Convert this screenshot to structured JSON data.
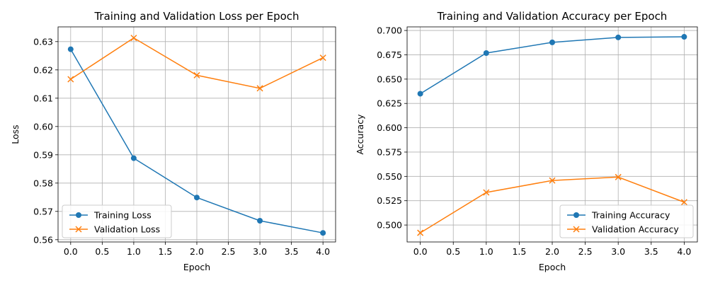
{
  "chart_data": [
    {
      "type": "line",
      "title": "Training and Validation Loss per Epoch",
      "xlabel": "Epoch",
      "ylabel": "Loss",
      "grid": true,
      "legend_position": "lower-left",
      "xlim": [
        -0.2,
        4.2
      ],
      "ylim": [
        0.5592,
        0.6352
      ],
      "xticks": [
        0.0,
        0.5,
        1.0,
        1.5,
        2.0,
        2.5,
        3.0,
        3.5,
        4.0
      ],
      "xtick_labels": [
        "0.0",
        "0.5",
        "1.0",
        "1.5",
        "2.0",
        "2.5",
        "3.0",
        "3.5",
        "4.0"
      ],
      "yticks": [
        0.56,
        0.57,
        0.58,
        0.59,
        0.6,
        0.61,
        0.62,
        0.63
      ],
      "ytick_labels": [
        "0.56",
        "0.57",
        "0.58",
        "0.59",
        "0.60",
        "0.61",
        "0.62",
        "0.63"
      ],
      "x": [
        0,
        1,
        2,
        3,
        4
      ],
      "series": [
        {
          "name": "Training Loss",
          "values": [
            0.6273,
            0.5888,
            0.5749,
            0.5667,
            0.5624
          ],
          "color": "#1f77b4",
          "marker": "circle"
        },
        {
          "name": "Validation Loss",
          "values": [
            0.6167,
            0.6313,
            0.6181,
            0.6135,
            0.6243
          ],
          "color": "#ff7f0e",
          "marker": "x"
        }
      ]
    },
    {
      "type": "line",
      "title": "Training and Validation Accuracy per Epoch",
      "xlabel": "Epoch",
      "ylabel": "Accuracy",
      "grid": true,
      "legend_position": "lower-right",
      "xlim": [
        -0.2,
        4.2
      ],
      "ylim": [
        0.4826,
        0.7037
      ],
      "xticks": [
        0.0,
        0.5,
        1.0,
        1.5,
        2.0,
        2.5,
        3.0,
        3.5,
        4.0
      ],
      "xtick_labels": [
        "0.0",
        "0.5",
        "1.0",
        "1.5",
        "2.0",
        "2.5",
        "3.0",
        "3.5",
        "4.0"
      ],
      "yticks": [
        0.5,
        0.525,
        0.55,
        0.575,
        0.6,
        0.625,
        0.65,
        0.675,
        0.7
      ],
      "ytick_labels": [
        "0.500",
        "0.525",
        "0.550",
        "0.575",
        "0.600",
        "0.625",
        "0.650",
        "0.675",
        "0.700"
      ],
      "x": [
        0,
        1,
        2,
        3,
        4
      ],
      "series": [
        {
          "name": "Training Accuracy",
          "values": [
            0.635,
            0.6768,
            0.6878,
            0.6929,
            0.6935
          ],
          "color": "#1f77b4",
          "marker": "circle"
        },
        {
          "name": "Validation Accuracy",
          "values": [
            0.492,
            0.5335,
            0.5458,
            0.5493,
            0.5235
          ],
          "color": "#ff7f0e",
          "marker": "x"
        }
      ]
    }
  ]
}
